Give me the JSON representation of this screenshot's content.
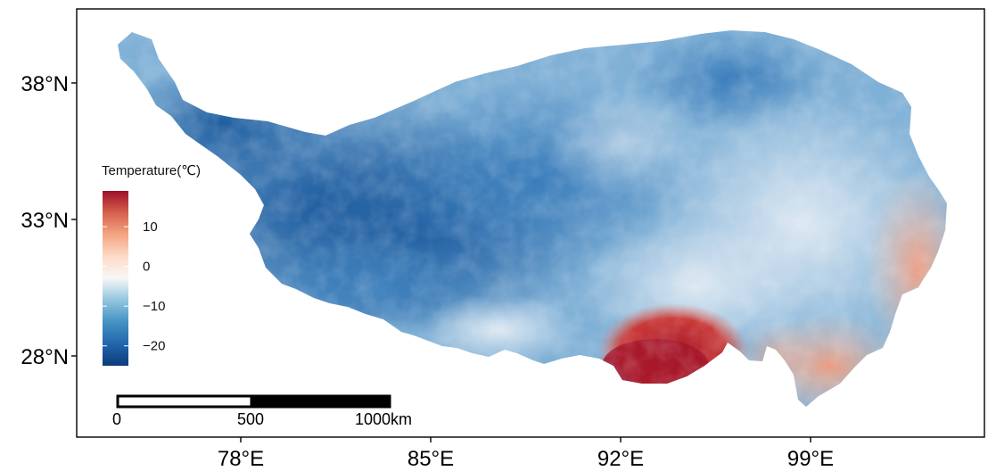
{
  "map": {
    "legend": {
      "title": "Temperature(℃)",
      "ticks": [
        {
          "value": 10,
          "label": "10"
        },
        {
          "value": 0,
          "label": "0"
        },
        {
          "value": -10,
          "label": "−10"
        },
        {
          "value": -20,
          "label": "−20"
        }
      ],
      "min": -25,
      "max": 19,
      "colors": [
        "#0d3b7a",
        "#2166ac",
        "#4393c3",
        "#92c5de",
        "#f7f7f7",
        "#fddbc7",
        "#f4a582",
        "#d6604d",
        "#9e0f27"
      ]
    },
    "axes": {
      "lat_labels": [
        {
          "value": 38,
          "label": "38°N"
        },
        {
          "value": 33,
          "label": "33°N"
        },
        {
          "value": 28,
          "label": "28°N"
        }
      ],
      "lon_labels": [
        {
          "value": 78,
          "label": "78°E"
        },
        {
          "value": 85,
          "label": "85°E"
        },
        {
          "value": 92,
          "label": "92°E"
        },
        {
          "value": 99,
          "label": "99°E"
        }
      ]
    },
    "scale_bar": {
      "labels": [
        "0",
        "500",
        "1000km"
      ]
    }
  }
}
